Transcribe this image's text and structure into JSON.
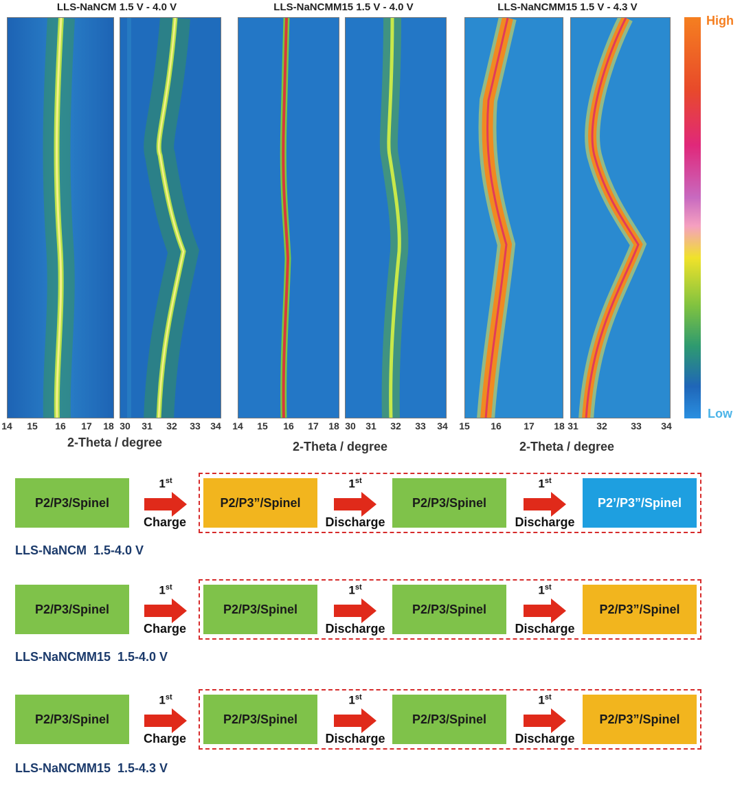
{
  "figure": {
    "titles": [
      "LLS-NaNCM 1.5 V - 4.0 V",
      "LLS-NaNCMM15 1.5 V - 4.0 V",
      "LLS-NaNCMM15 1.5 V - 4.3 V"
    ],
    "xlabel": "2-Theta / degree",
    "colorbar": {
      "high": "High",
      "low": "Low"
    },
    "tick_groups": [
      [
        "14",
        "15",
        "16",
        "17",
        "18"
      ],
      [
        "30",
        "31",
        "32",
        "33",
        "34"
      ],
      [
        "14",
        "15",
        "16",
        "17",
        "18"
      ],
      [
        "30",
        "31",
        "32",
        "33",
        "34"
      ],
      [
        "15",
        "16",
        "17",
        "18"
      ],
      [
        "31",
        "32",
        "33",
        "34"
      ]
    ]
  },
  "colors": {
    "green": "#7fc24a",
    "yellow": "#f2b51e",
    "blue": "#1e9fe0",
    "dashed": "#d62a2a",
    "arrow": "#e02a1a",
    "label": "#1b3a6b"
  },
  "schemes": [
    {
      "label": "LLS-NaNCM  1.5-4.0 V",
      "boxes": [
        "P2/P3/Spinel",
        "P2/P3”/Spinel",
        "P2/P3/Spinel",
        "P2’/P3”/Spinel"
      ],
      "box_colors": [
        "green",
        "yellow",
        "green",
        "blue"
      ],
      "steps": [
        {
          "ordinal": "1",
          "sup": "st",
          "action": "Charge"
        },
        {
          "ordinal": "1",
          "sup": "st",
          "action": "Discharge"
        },
        {
          "ordinal": "1",
          "sup": "st",
          "action": "Discharge"
        }
      ]
    },
    {
      "label": "LLS-NaNCMM15  1.5-4.0 V",
      "boxes": [
        "P2/P3/Spinel",
        "P2/P3/Spinel",
        "P2/P3/Spinel",
        "P2/P3”/Spinel"
      ],
      "box_colors": [
        "green",
        "green",
        "green",
        "yellow"
      ],
      "steps": [
        {
          "ordinal": "1",
          "sup": "st",
          "action": "Charge"
        },
        {
          "ordinal": "1",
          "sup": "st",
          "action": "Discharge"
        },
        {
          "ordinal": "1",
          "sup": "st",
          "action": "Discharge"
        }
      ]
    },
    {
      "label": "LLS-NaNCMM15  1.5-4.3 V",
      "boxes": [
        "P2/P3/Spinel",
        "P2/P3/Spinel",
        "P2/P3/Spinel",
        "P2/P3”/Spinel"
      ],
      "box_colors": [
        "green",
        "green",
        "green",
        "yellow"
      ],
      "steps": [
        {
          "ordinal": "1",
          "sup": "st",
          "action": "Charge"
        },
        {
          "ordinal": "1",
          "sup": "st",
          "action": "Discharge"
        },
        {
          "ordinal": "1",
          "sup": "st",
          "action": "Discharge"
        }
      ]
    }
  ]
}
